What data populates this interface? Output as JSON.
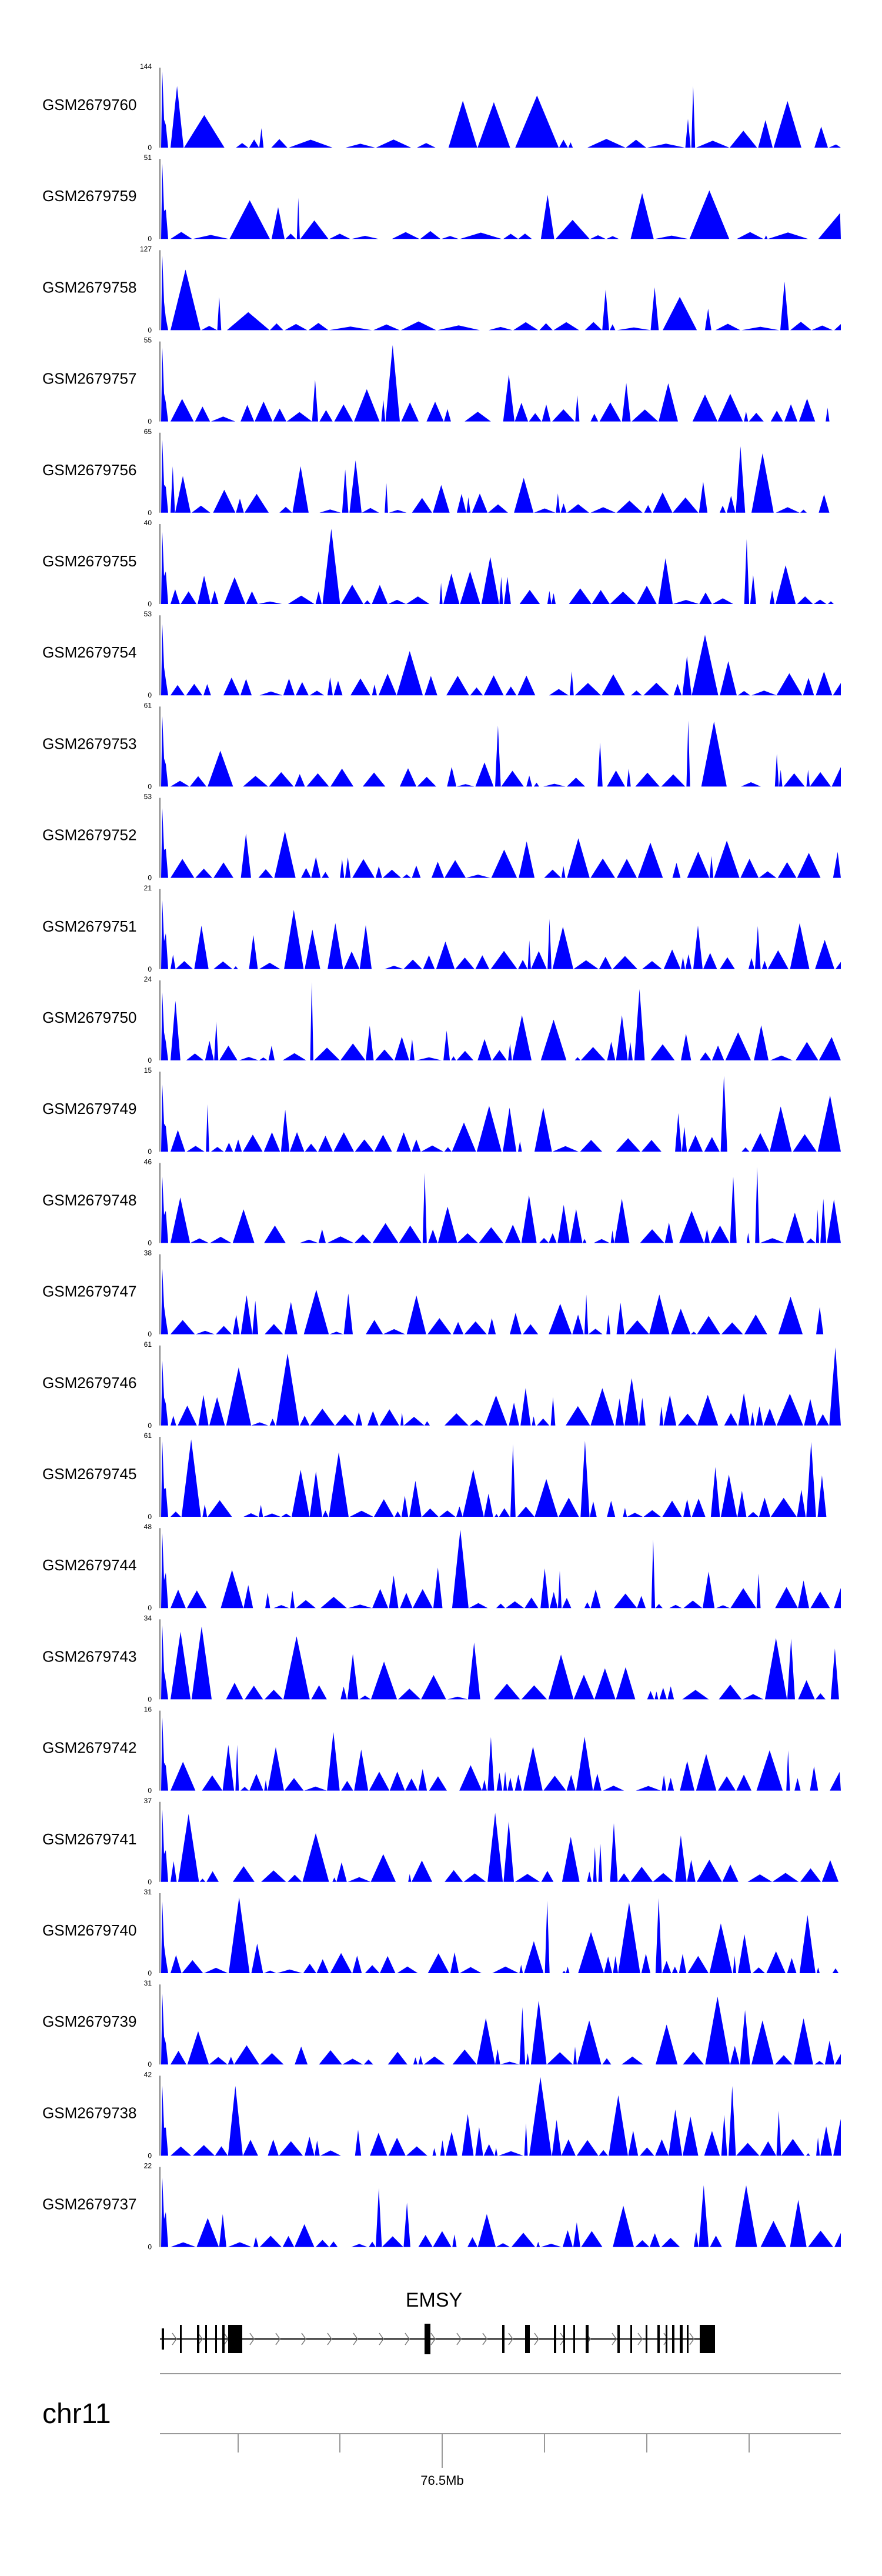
{
  "chart_data": {
    "type": "area",
    "region": {
      "chromosome": "chr11",
      "position_labels": [
        {
          "text": "76.5Mb",
          "value": 76.5
        }
      ]
    },
    "tracks": [
      {
        "name": "GSM2679760",
        "ymax": 144,
        "ymin": 0,
        "color": "#0000ff"
      },
      {
        "name": "GSM2679759",
        "ymax": 51,
        "ymin": 0,
        "color": "#0000ff"
      },
      {
        "name": "GSM2679758",
        "ymax": 127,
        "ymin": 0,
        "color": "#0000ff"
      },
      {
        "name": "GSM2679757",
        "ymax": 55,
        "ymin": 0,
        "color": "#0000ff"
      },
      {
        "name": "GSM2679756",
        "ymax": 65,
        "ymin": 0,
        "color": "#0000ff"
      },
      {
        "name": "GSM2679755",
        "ymax": 40,
        "ymin": 0,
        "color": "#0000ff"
      },
      {
        "name": "GSM2679754",
        "ymax": 53,
        "ymin": 0,
        "color": "#0000ff"
      },
      {
        "name": "GSM2679753",
        "ymax": 61,
        "ymin": 0,
        "color": "#0000ff"
      },
      {
        "name": "GSM2679752",
        "ymax": 53,
        "ymin": 0,
        "color": "#0000ff"
      },
      {
        "name": "GSM2679751",
        "ymax": 21,
        "ymin": 0,
        "color": "#0000ff"
      },
      {
        "name": "GSM2679750",
        "ymax": 24,
        "ymin": 0,
        "color": "#0000ff"
      },
      {
        "name": "GSM2679749",
        "ymax": 15,
        "ymin": 0,
        "color": "#0000ff"
      },
      {
        "name": "GSM2679748",
        "ymax": 46,
        "ymin": 0,
        "color": "#0000ff"
      },
      {
        "name": "GSM2679747",
        "ymax": 38,
        "ymin": 0,
        "color": "#0000ff"
      },
      {
        "name": "GSM2679746",
        "ymax": 61,
        "ymin": 0,
        "color": "#0000ff"
      },
      {
        "name": "GSM2679745",
        "ymax": 61,
        "ymin": 0,
        "color": "#0000ff"
      },
      {
        "name": "GSM2679744",
        "ymax": 48,
        "ymin": 0,
        "color": "#0000ff"
      },
      {
        "name": "GSM2679743",
        "ymax": 34,
        "ymin": 0,
        "color": "#0000ff"
      },
      {
        "name": "GSM2679742",
        "ymax": 16,
        "ymin": 0,
        "color": "#0000ff"
      },
      {
        "name": "GSM2679741",
        "ymax": 37,
        "ymin": 0,
        "color": "#0000ff"
      },
      {
        "name": "GSM2679740",
        "ymax": 31,
        "ymin": 0,
        "color": "#0000ff"
      },
      {
        "name": "GSM2679739",
        "ymax": 31,
        "ymin": 0,
        "color": "#0000ff"
      },
      {
        "name": "GSM2679738",
        "ymax": 42,
        "ymin": 0,
        "color": "#0000ff"
      },
      {
        "name": "GSM2679737",
        "ymax": 22,
        "ymin": 0,
        "color": "#0000ff"
      }
    ],
    "gene": {
      "name": "EMSY",
      "strand": "+"
    },
    "grid": false,
    "legend": "none"
  }
}
